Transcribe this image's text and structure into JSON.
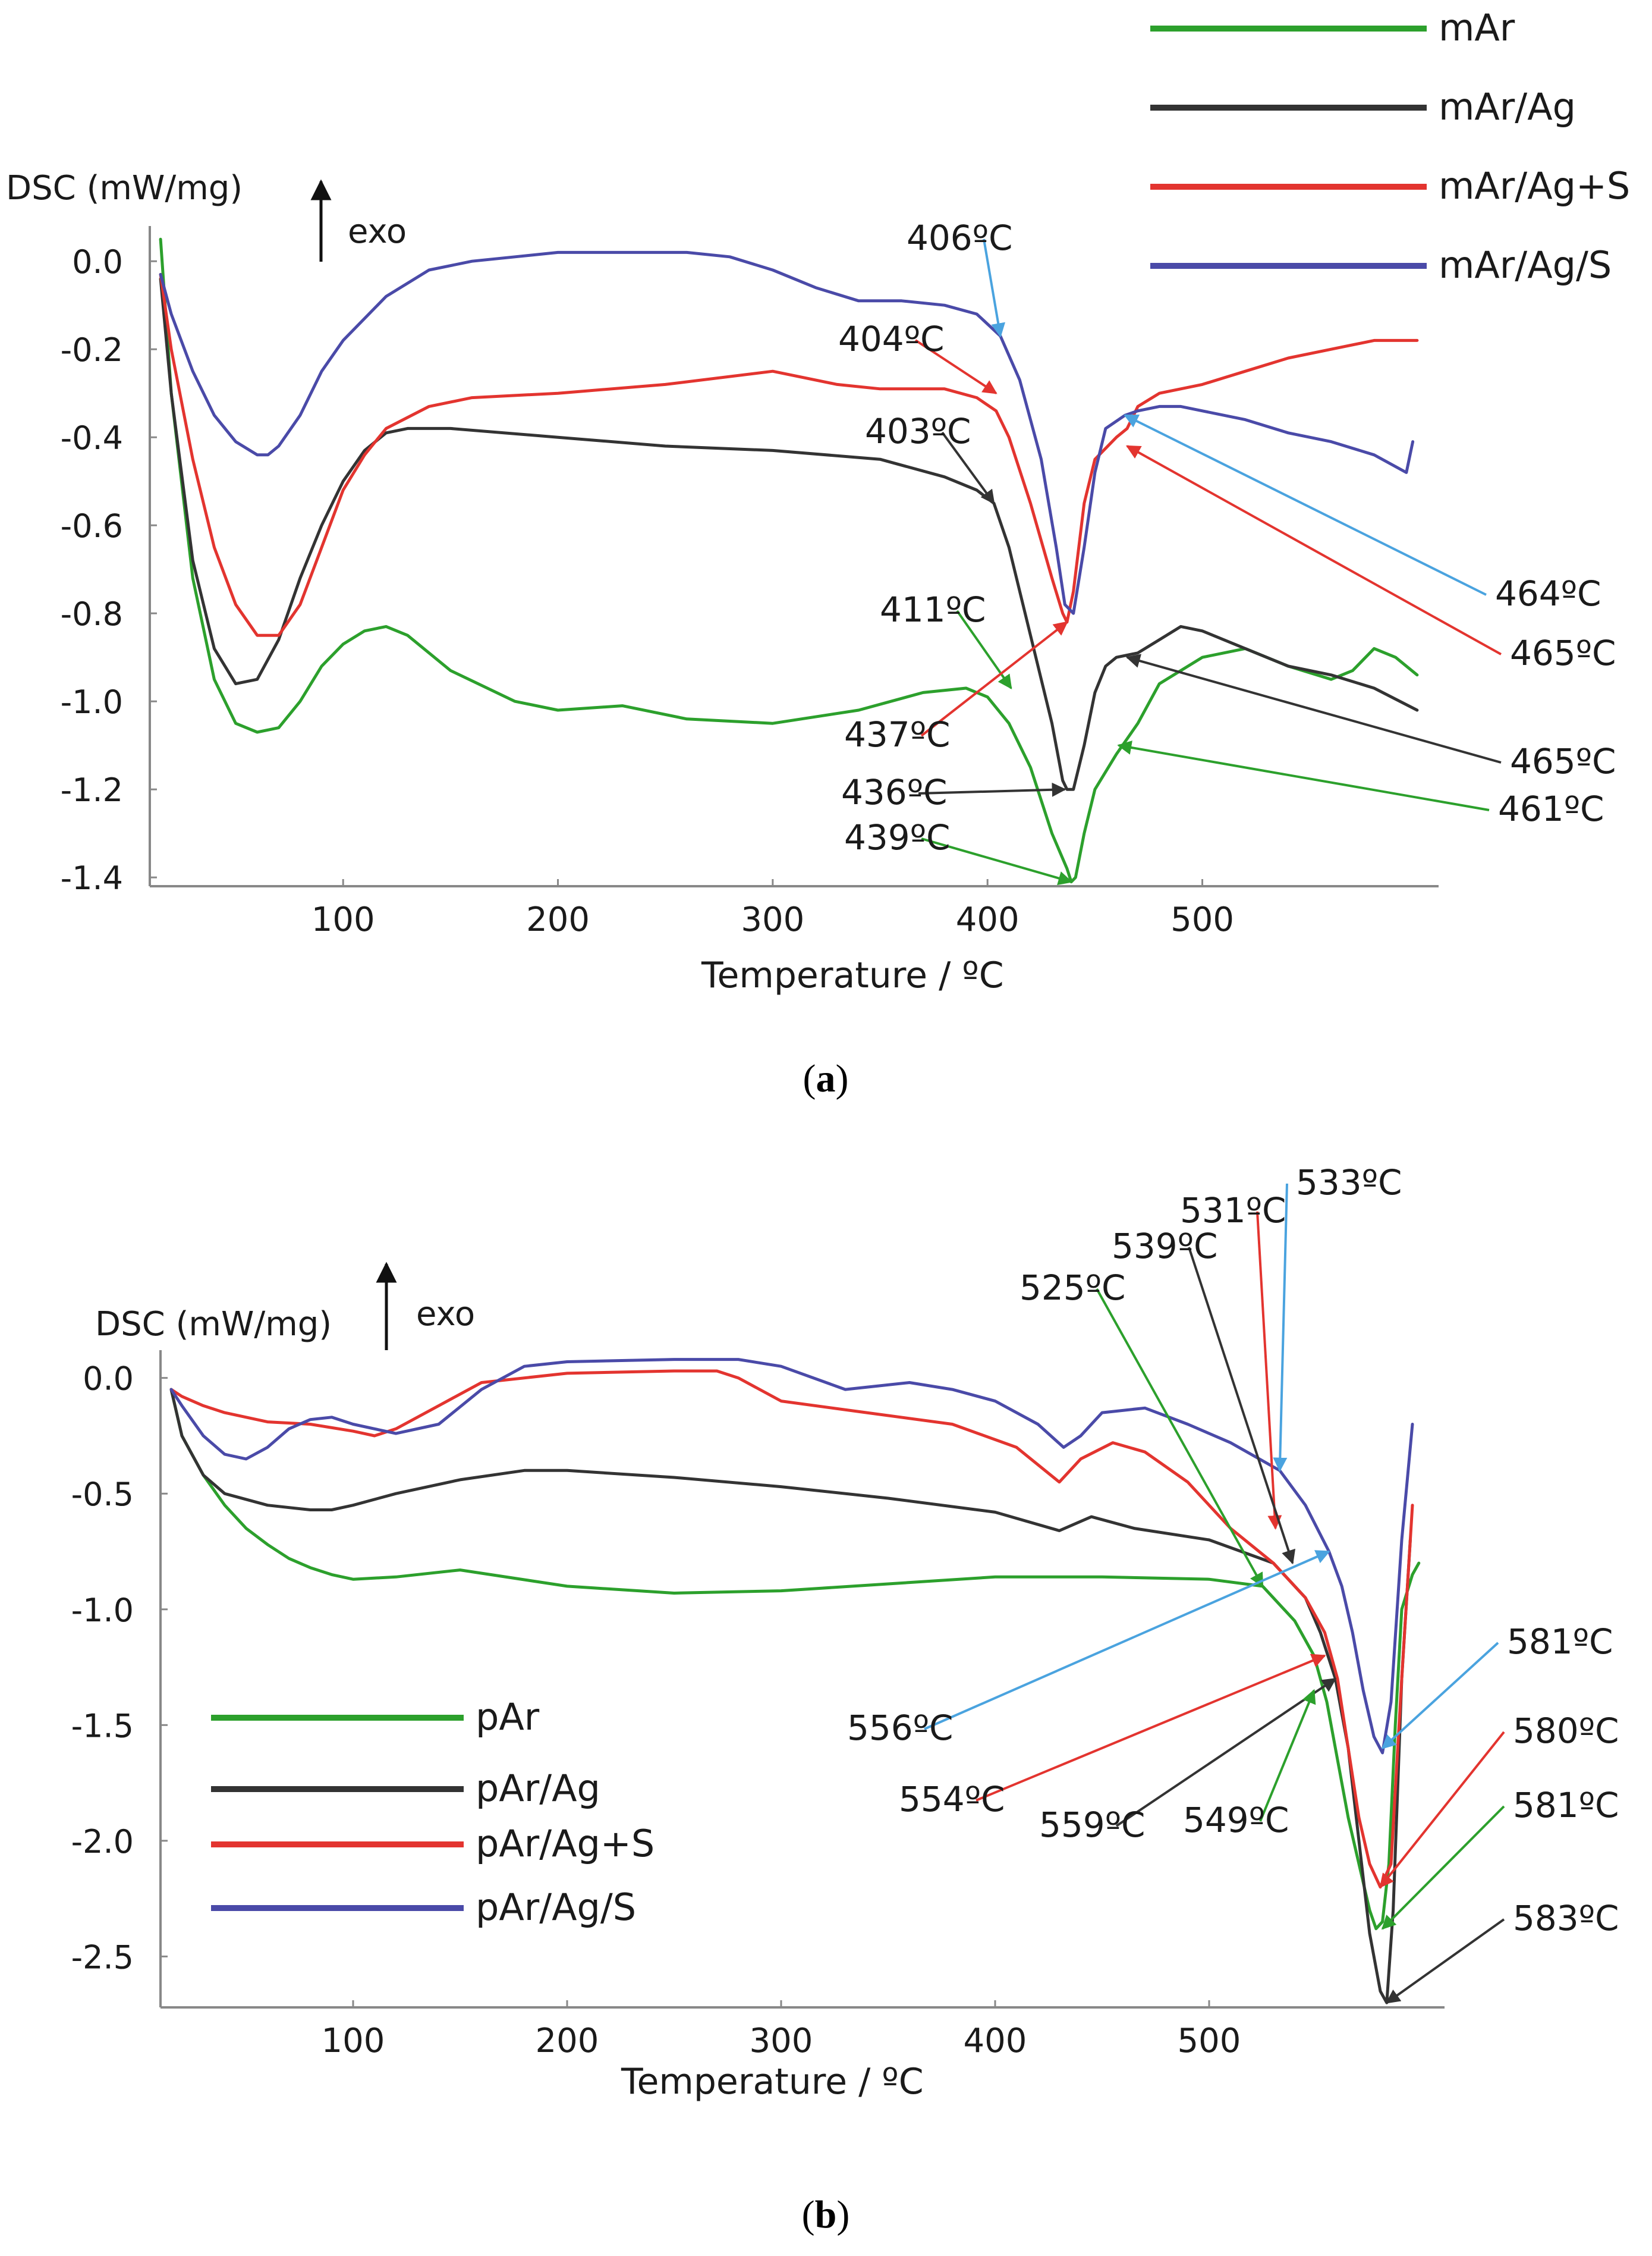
{
  "chart_data": [
    {
      "panel": "a",
      "caption_letter": "a",
      "type": "line",
      "ylabel": "DSC (mW/mg)",
      "xlabel": "Temperature / ºC",
      "exo_label": "exo",
      "xlim": [
        10,
        610
      ],
      "ylim": [
        -1.42,
        0.08
      ],
      "xticks": [
        100,
        200,
        300,
        400,
        500
      ],
      "yticks": [
        0.0,
        -0.2,
        -0.4,
        -0.6,
        -0.8,
        -1.0,
        -1.2,
        -1.4
      ],
      "ytick_labels": [
        "0.0",
        "-0.2",
        "-0.4",
        "-0.6",
        "-0.8",
        "-1.0",
        "-1.2",
        "-1.4"
      ],
      "legend_position": "top-right",
      "series": [
        {
          "name": "mAr",
          "color": "#2ca02c",
          "x": [
            15,
            20,
            30,
            40,
            50,
            60,
            70,
            80,
            90,
            100,
            110,
            120,
            130,
            150,
            180,
            200,
            230,
            260,
            300,
            340,
            370,
            390,
            400,
            410,
            420,
            430,
            437,
            439,
            441,
            445,
            450,
            460,
            470,
            480,
            500,
            520,
            540,
            560,
            570,
            580,
            590,
            600
          ],
          "y": [
            0.05,
            -0.3,
            -0.72,
            -0.95,
            -1.05,
            -1.07,
            -1.06,
            -1.0,
            -0.92,
            -0.87,
            -0.84,
            -0.83,
            -0.85,
            -0.93,
            -1.0,
            -1.02,
            -1.01,
            -1.04,
            -1.05,
            -1.02,
            -0.98,
            -0.97,
            -0.99,
            -1.05,
            -1.15,
            -1.3,
            -1.38,
            -1.41,
            -1.4,
            -1.3,
            -1.2,
            -1.12,
            -1.05,
            -0.96,
            -0.9,
            -0.88,
            -0.92,
            -0.95,
            -0.93,
            -0.88,
            -0.9,
            -0.94
          ]
        },
        {
          "name": "mAr/Ag",
          "color": "#333333",
          "x": [
            15,
            20,
            30,
            40,
            50,
            60,
            70,
            80,
            90,
            100,
            110,
            120,
            130,
            150,
            200,
            250,
            300,
            350,
            380,
            395,
            403,
            410,
            420,
            430,
            435,
            437,
            440,
            445,
            450,
            455,
            460,
            470,
            480,
            490,
            500,
            520,
            540,
            560,
            580,
            600
          ],
          "y": [
            -0.04,
            -0.3,
            -0.68,
            -0.88,
            -0.96,
            -0.95,
            -0.86,
            -0.72,
            -0.6,
            -0.5,
            -0.43,
            -0.39,
            -0.38,
            -0.38,
            -0.4,
            -0.42,
            -0.43,
            -0.45,
            -0.49,
            -0.52,
            -0.55,
            -0.65,
            -0.85,
            -1.05,
            -1.18,
            -1.2,
            -1.2,
            -1.1,
            -0.98,
            -0.92,
            -0.9,
            -0.89,
            -0.86,
            -0.83,
            -0.84,
            -0.88,
            -0.92,
            -0.94,
            -0.97,
            -1.02
          ]
        },
        {
          "name": "mAr/Ag+S",
          "color": "#e3342f",
          "x": [
            15,
            20,
            30,
            40,
            50,
            60,
            70,
            80,
            90,
            100,
            110,
            120,
            140,
            160,
            200,
            250,
            300,
            330,
            350,
            380,
            395,
            404,
            410,
            420,
            430,
            435,
            437,
            440,
            445,
            450,
            460,
            465,
            470,
            480,
            500,
            520,
            540,
            560,
            580,
            600
          ],
          "y": [
            -0.03,
            -0.2,
            -0.45,
            -0.65,
            -0.78,
            -0.85,
            -0.85,
            -0.78,
            -0.65,
            -0.52,
            -0.44,
            -0.38,
            -0.33,
            -0.31,
            -0.3,
            -0.28,
            -0.25,
            -0.28,
            -0.29,
            -0.29,
            -0.31,
            -0.34,
            -0.4,
            -0.55,
            -0.72,
            -0.8,
            -0.82,
            -0.75,
            -0.55,
            -0.45,
            -0.4,
            -0.38,
            -0.33,
            -0.3,
            -0.28,
            -0.25,
            -0.22,
            -0.2,
            -0.18,
            -0.18
          ]
        },
        {
          "name": "mAr/Ag/S",
          "color": "#4a4aa8",
          "x": [
            15,
            20,
            30,
            40,
            50,
            60,
            65,
            70,
            80,
            90,
            100,
            120,
            140,
            160,
            180,
            200,
            230,
            260,
            280,
            300,
            320,
            340,
            360,
            380,
            395,
            406,
            415,
            425,
            432,
            436,
            440,
            445,
            450,
            455,
            464,
            470,
            480,
            490,
            500,
            520,
            540,
            560,
            580,
            595,
            598
          ],
          "y": [
            -0.03,
            -0.12,
            -0.25,
            -0.35,
            -0.41,
            -0.44,
            -0.44,
            -0.42,
            -0.35,
            -0.25,
            -0.18,
            -0.08,
            -0.02,
            0.0,
            0.01,
            0.02,
            0.02,
            0.02,
            0.01,
            -0.02,
            -0.06,
            -0.09,
            -0.09,
            -0.1,
            -0.12,
            -0.17,
            -0.27,
            -0.45,
            -0.65,
            -0.78,
            -0.8,
            -0.65,
            -0.48,
            -0.38,
            -0.35,
            -0.34,
            -0.33,
            -0.33,
            -0.34,
            -0.36,
            -0.39,
            -0.41,
            -0.44,
            -0.48,
            -0.41
          ]
        }
      ],
      "annotations": [
        {
          "text": "406ºC",
          "color": "#4aa3df",
          "x": 406,
          "y": -0.17
        },
        {
          "text": "404ºC",
          "color": "#e3342f",
          "x": 404,
          "y": -0.3
        },
        {
          "text": "403ºC",
          "color": "#333333",
          "x": 403,
          "y": -0.55
        },
        {
          "text": "411ºC",
          "color": "#2ca02c",
          "x": 411,
          "y": -0.97
        },
        {
          "text": "437ºC",
          "color": "#e3342f",
          "x": 437,
          "y": -0.82
        },
        {
          "text": "436ºC",
          "color": "#333333",
          "x": 436,
          "y": -1.2
        },
        {
          "text": "439ºC",
          "color": "#2ca02c",
          "x": 439,
          "y": -1.41
        },
        {
          "text": "464ºC",
          "color": "#4aa3df",
          "x": 464,
          "y": -0.35
        },
        {
          "text": "465ºC",
          "color": "#e3342f",
          "x": 465,
          "y": -0.42
        },
        {
          "text": "465ºC",
          "color": "#333333",
          "x": 465,
          "y": -0.9
        },
        {
          "text": "461ºC",
          "color": "#2ca02c",
          "x": 461,
          "y": -1.1
        }
      ]
    },
    {
      "panel": "b",
      "caption_letter": "b",
      "type": "line",
      "ylabel": "DSC (mW/mg)",
      "xlabel": "Temperature / ºC",
      "exo_label": "exo",
      "xlim": [
        10,
        610
      ],
      "ylim": [
        -2.72,
        0.12
      ],
      "xticks": [
        100,
        200,
        300,
        400,
        500
      ],
      "yticks": [
        0.0,
        -0.5,
        -1.0,
        -1.5,
        -2.0,
        -2.5
      ],
      "ytick_labels": [
        "0.0",
        "-0.5",
        "-1.0",
        "-1.5",
        "-2.0",
        "-2.5"
      ],
      "legend_position": "bottom-left",
      "series": [
        {
          "name": "pAr",
          "color": "#2ca02c",
          "x": [
            15,
            20,
            30,
            40,
            50,
            60,
            70,
            80,
            90,
            100,
            120,
            150,
            200,
            250,
            300,
            350,
            400,
            450,
            500,
            525,
            540,
            549,
            555,
            560,
            565,
            570,
            575,
            578,
            581,
            584,
            587,
            590,
            595,
            598
          ],
          "y": [
            -0.05,
            -0.25,
            -0.42,
            -0.55,
            -0.65,
            -0.72,
            -0.78,
            -0.82,
            -0.85,
            -0.87,
            -0.86,
            -0.83,
            -0.9,
            -0.93,
            -0.92,
            -0.89,
            -0.86,
            -0.86,
            -0.87,
            -0.9,
            -1.05,
            -1.2,
            -1.4,
            -1.65,
            -1.9,
            -2.1,
            -2.3,
            -2.38,
            -2.35,
            -2.1,
            -1.5,
            -1.0,
            -0.85,
            -0.8
          ]
        },
        {
          "name": "pAr/Ag",
          "color": "#333333",
          "x": [
            15,
            20,
            30,
            40,
            60,
            80,
            90,
            100,
            120,
            150,
            180,
            200,
            250,
            300,
            350,
            400,
            430,
            445,
            465,
            500,
            530,
            545,
            552,
            559,
            565,
            570,
            575,
            580,
            583,
            586,
            590,
            594
          ],
          "y": [
            -0.05,
            -0.25,
            -0.42,
            -0.5,
            -0.55,
            -0.57,
            -0.57,
            -0.55,
            -0.5,
            -0.44,
            -0.4,
            -0.4,
            -0.43,
            -0.47,
            -0.52,
            -0.58,
            -0.66,
            -0.6,
            -0.65,
            -0.7,
            -0.8,
            -0.95,
            -1.1,
            -1.3,
            -1.6,
            -2.0,
            -2.4,
            -2.65,
            -2.7,
            -2.3,
            -1.3,
            -0.7
          ]
        },
        {
          "name": "pAr/Ag+S",
          "color": "#e3342f",
          "x": [
            15,
            20,
            30,
            40,
            50,
            60,
            80,
            100,
            110,
            120,
            140,
            160,
            200,
            250,
            270,
            280,
            300,
            340,
            380,
            410,
            430,
            440,
            455,
            470,
            490,
            510,
            530,
            545,
            554,
            560,
            565,
            570,
            575,
            580,
            585,
            590,
            595
          ],
          "y": [
            -0.05,
            -0.08,
            -0.12,
            -0.15,
            -0.17,
            -0.19,
            -0.2,
            -0.23,
            -0.25,
            -0.22,
            -0.12,
            -0.02,
            0.02,
            0.03,
            0.03,
            0.0,
            -0.1,
            -0.15,
            -0.2,
            -0.3,
            -0.45,
            -0.35,
            -0.28,
            -0.32,
            -0.45,
            -0.65,
            -0.8,
            -0.95,
            -1.1,
            -1.3,
            -1.6,
            -1.9,
            -2.1,
            -2.2,
            -2.1,
            -1.3,
            -0.55
          ]
        },
        {
          "name": "pAr/Ag/S",
          "color": "#4a4aa8",
          "x": [
            15,
            20,
            30,
            40,
            50,
            60,
            70,
            80,
            90,
            100,
            110,
            120,
            140,
            160,
            180,
            200,
            250,
            280,
            300,
            330,
            360,
            380,
            400,
            420,
            432,
            440,
            450,
            470,
            490,
            510,
            533,
            545,
            556,
            562,
            567,
            572,
            577,
            581,
            585,
            590,
            595
          ],
          "y": [
            -0.05,
            -0.12,
            -0.25,
            -0.33,
            -0.35,
            -0.3,
            -0.22,
            -0.18,
            -0.17,
            -0.2,
            -0.22,
            -0.24,
            -0.2,
            -0.05,
            0.05,
            0.07,
            0.08,
            0.08,
            0.05,
            -0.05,
            -0.02,
            -0.05,
            -0.1,
            -0.2,
            -0.3,
            -0.25,
            -0.15,
            -0.13,
            -0.2,
            -0.28,
            -0.4,
            -0.55,
            -0.75,
            -0.9,
            -1.1,
            -1.35,
            -1.55,
            -1.62,
            -1.4,
            -0.7,
            -0.2
          ]
        }
      ],
      "annotations": [
        {
          "text": "533ºC",
          "color": "#4aa3df",
          "x": 533,
          "y": -0.4
        },
        {
          "text": "531ºC",
          "color": "#e3342f",
          "x": 531,
          "y": -0.65
        },
        {
          "text": "539ºC",
          "color": "#333333",
          "x": 539,
          "y": -0.8
        },
        {
          "text": "525ºC",
          "color": "#2ca02c",
          "x": 525,
          "y": -0.9
        },
        {
          "text": "556ºC",
          "color": "#4aa3df",
          "x": 556,
          "y": -0.75
        },
        {
          "text": "554ºC",
          "color": "#e3342f",
          "x": 554,
          "y": -1.2
        },
        {
          "text": "559ºC",
          "color": "#333333",
          "x": 559,
          "y": -1.3
        },
        {
          "text": "549ºC",
          "color": "#2ca02c",
          "x": 549,
          "y": -1.35
        },
        {
          "text": "581ºC",
          "color": "#4aa3df",
          "x": 581,
          "y": -1.6
        },
        {
          "text": "580ºC",
          "color": "#e3342f",
          "x": 580,
          "y": -2.2
        },
        {
          "text": "581ºC",
          "color": "#2ca02c",
          "x": 581,
          "y": -2.38
        },
        {
          "text": "583ºC",
          "color": "#333333",
          "x": 583,
          "y": -2.7
        }
      ]
    }
  ]
}
